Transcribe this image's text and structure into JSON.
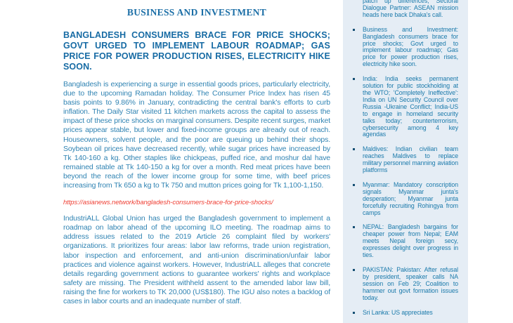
{
  "colors": {
    "accent_blue": "#1b6ea6",
    "body_blue": "#3184b3",
    "link_red": "#ef4136",
    "panel_bg": "#e5edf5",
    "panel_text": "#1b7aab"
  },
  "article": {
    "section_header": "BUSINESS AND INVESTMENT",
    "headline": "BANGLADESH CONSUMERS BRACE FOR PRICE SHOCKS; GOVT URGED TO IMPLEMENT LABOUR ROADMAP; GAS PRICE FOR POWER PRODUCTION RISES, ELECTRICITY HIKE SOON.",
    "paragraph_1": "Bangladesh is experiencing a surge in essential goods prices, particularly electricity, due to the upcoming Ramadan holiday. The Consumer Price Index has risen 45 basis points to 9.86% in January, contradicting the central bank's efforts to curb inflation. The Daily Star visited 11 kitchen markets across the capital to assess the impact of these price shocks on marginal consumers. Despite recent surges, market prices appear stable, but lower and fixed-income groups are already out of reach. Houseowners, solvent people, and the poor are queuing up behind their shops. Soybean oil prices have decreased recently, while sugar prices have increased by Tk 140-160 a kg. Other staples like chickpeas, puffed rice, and moshur dal have remained stable at Tk 140-150 a kg for over a month. Red meat prices have been beyond the reach of the lower income group for some time, with beef prices increasing from Tk 650 a kg to Tk 750 and mutton prices going for Tk 1,100-1,150.",
    "source_link": "https://asianews.network/bangladesh-consumers-brace-for-price-shocks/",
    "paragraph_2": "IndustriALL Global Union has urged the Bangladesh government to implement a roadmap on labor ahead of the upcoming ILO meeting. The roadmap aims to address issues related to the 2019 Article 26 complaint filed by workers' organizations. It prioritizes four areas: labor law reforms, trade union registration, labor inspection and enforcement, and anti-union discrimination/unfair labor practices and violence against workers. However, IndustriALL alleges that concrete details regarding government actions to guarantee workers' rights and workplace safety are missing. The President withheld assent to the amended labor law bill, raising the fine for workers to TK 20,000 (US$180). The IGU also notes a backlog of cases in labor courts and an inadequate number of staff.",
    "page_background": "#ffffff"
  },
  "sidebar": {
    "items": [
      {
        "text": "patch up differences; Sectoral Dialogue Partner: ASEAN mission heads here back Dhaka's call.",
        "clipped_top": true
      },
      {
        "text": "Business and Investment: Bangladesh consumers brace for price shocks; Govt urged to implement labour roadmap; Gas price for power production rises, electricity hike soon."
      },
      {
        "text": "India: India seeks permanent solution for public stockholding at the WTO; 'Completely Ineffective': India on UN Security Council over Russia -Ukraine Conflict; India-US to engage in homeland security talks today; counterterrorism, cybersecurity among 4 key agendas"
      },
      {
        "text": "Maldives: Indian civilian team reaches Maldives to replace military personnel manning aviation platforms"
      },
      {
        "text": "Myanmar: Mandatory conscription signals Myanmar junta's desperation; Myanmar junta forcefully recruiting Rohingya from camps"
      },
      {
        "text": "NEPAL: Bangladesh bargains for cheaper power from Nepal; EAM meets Nepal foreign secy, expresses delight over progress in ties."
      },
      {
        "text": "PAKISTAN: Pakistan: After refusal by president, speaker calls NA session on Feb 29; Coalition to hammer out govt formation issues today."
      },
      {
        "text": "Sri Lanka: US appreciates",
        "clipped_bottom": true
      }
    ]
  }
}
